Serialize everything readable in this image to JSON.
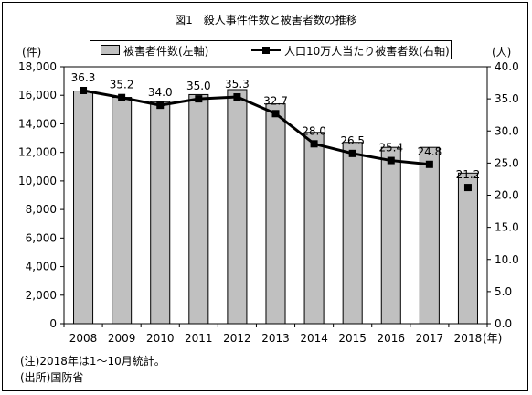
{
  "title": "図1　殺人事件件数と被害者数の推移",
  "legend": {
    "bar_label": "被害者件数(左軸)",
    "line_label": "人口10万人当たり被害者数(右軸)"
  },
  "axes": {
    "left_unit": "(件)",
    "right_unit": "(人)",
    "x_unit": "(年)"
  },
  "notes": {
    "note": "(注)2018年は1～10月統計。",
    "source": "(出所)国防省"
  },
  "colors": {
    "bar": "#c0c0c0",
    "line": "#000000"
  },
  "chart_data": {
    "type": "bar",
    "categories": [
      "2008",
      "2009",
      "2010",
      "2011",
      "2012",
      "2013",
      "2014",
      "2015",
      "2016",
      "2017",
      "2018"
    ],
    "series": [
      {
        "name": "被害者件数(左軸)",
        "axis": "left",
        "type": "bar",
        "values": [
          16300,
          15850,
          15550,
          16050,
          16400,
          15400,
          13400,
          12700,
          12350,
          12350,
          10550
        ]
      },
      {
        "name": "人口10万人当たり被害者数(右軸)",
        "axis": "right",
        "type": "line",
        "values": [
          36.3,
          35.2,
          34.0,
          35.0,
          35.3,
          32.7,
          28.0,
          26.5,
          25.4,
          24.8,
          21.2
        ],
        "labels": [
          "36.3",
          "35.2",
          "34.0",
          "35.0",
          "35.3",
          "32.7",
          "28.0",
          "26.5",
          "25.4",
          "24.8",
          "21.2"
        ],
        "connected_through_index": 9
      }
    ],
    "y_left": {
      "min": 0,
      "max": 18000,
      "ticks": [
        "0",
        "2,000",
        "4,000",
        "6,000",
        "8,000",
        "10,000",
        "12,000",
        "14,000",
        "16,000",
        "18,000"
      ]
    },
    "y_right": {
      "min": 0,
      "max": 40,
      "ticks": [
        "0.0",
        "5.0",
        "10.0",
        "15.0",
        "20.0",
        "25.0",
        "30.0",
        "35.0",
        "40.0"
      ]
    },
    "grid": false,
    "legend_position": "top"
  }
}
